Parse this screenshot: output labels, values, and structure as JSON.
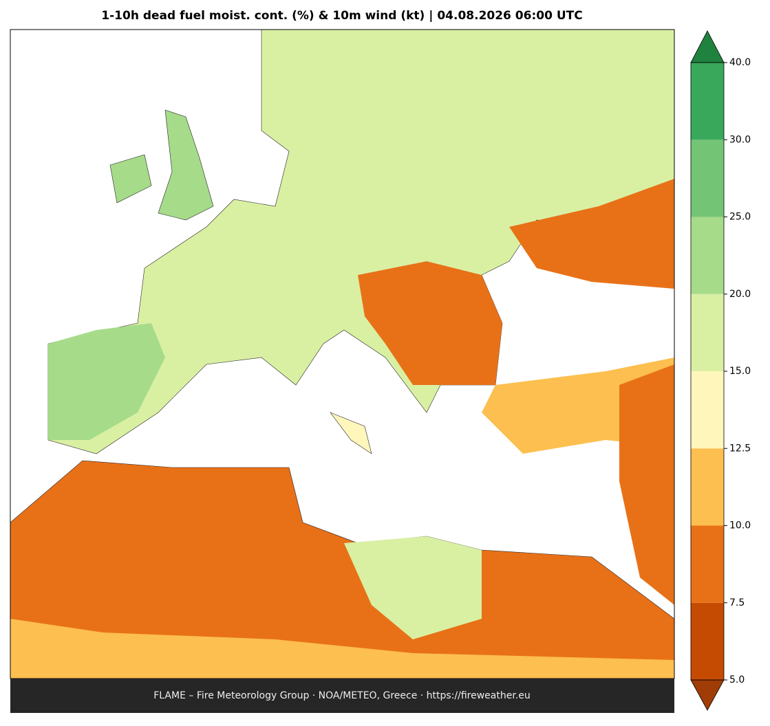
{
  "header": {
    "title": "1-10h dead fuel moist. cont. (%) & 10m wind (kt)  |  04.08.2026 06:00 UTC"
  },
  "colorbar": {
    "ticks": [
      {
        "value": 5,
        "label": "5.0"
      },
      {
        "value": 7.5,
        "label": "7.5"
      },
      {
        "value": 10,
        "label": "10.0"
      },
      {
        "value": 12.5,
        "label": "12.5"
      },
      {
        "value": 15,
        "label": "15.0"
      },
      {
        "value": 20,
        "label": "20.0"
      },
      {
        "value": 25,
        "label": "25.0"
      },
      {
        "value": 30,
        "label": "30.0"
      },
      {
        "value": 40,
        "label": "40.0"
      }
    ],
    "colors": [
      "#c64b02",
      "#e87118",
      "#fdbf4f",
      "#fff6bc",
      "#d9f0a3",
      "#a6db8a",
      "#74c476",
      "#3aa85a"
    ],
    "under_color": "#a03c06",
    "over_color": "#20823f"
  },
  "footer": {
    "text": "FLAME – Fire Meteorology Group · NOA/METEO, Greece · https://fireweather.eu"
  }
}
